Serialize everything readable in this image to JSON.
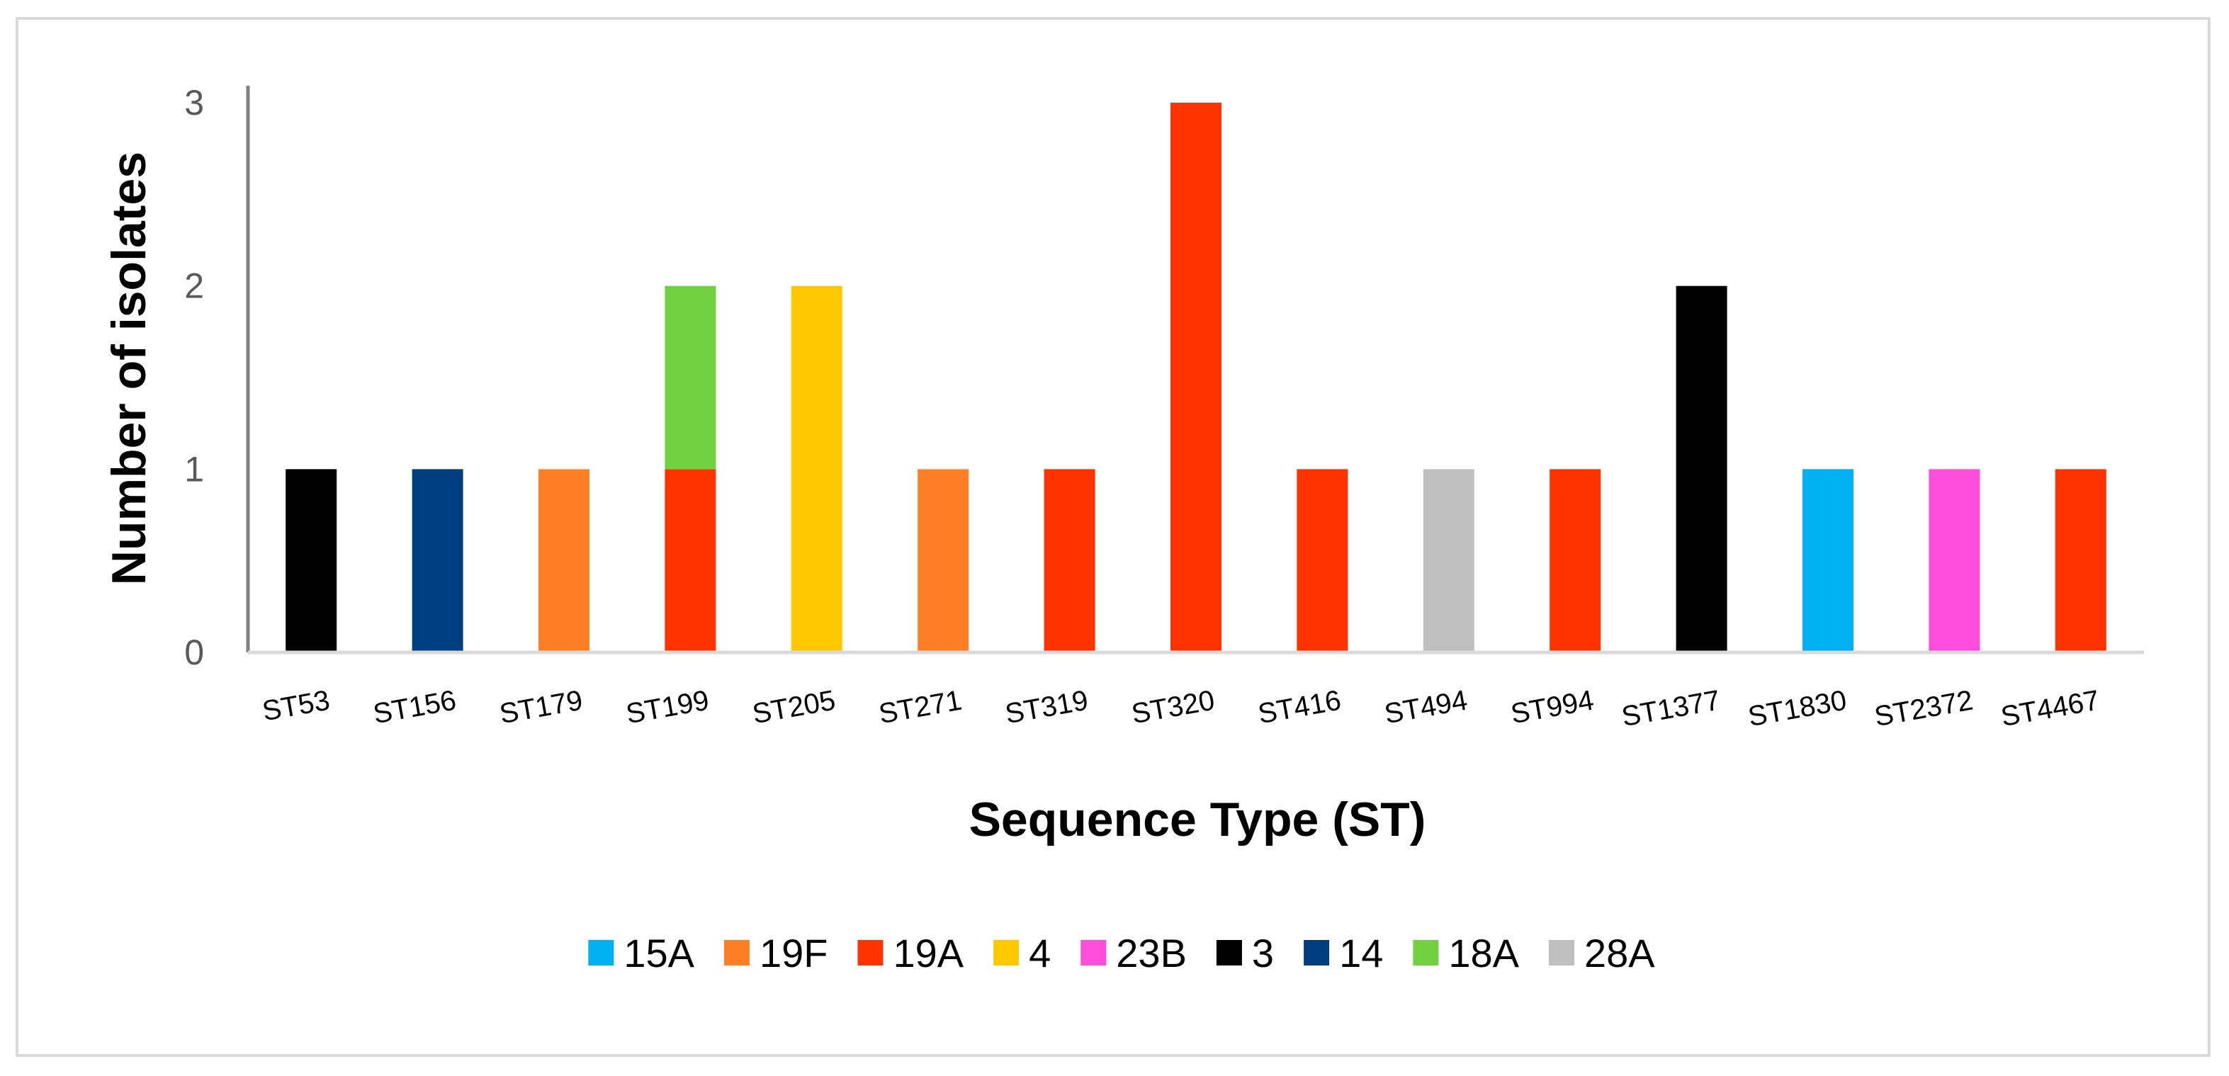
{
  "chart_data": {
    "type": "bar",
    "stacked": true,
    "title": "",
    "xlabel": "Sequence Type (ST)",
    "ylabel": "Number of isolates",
    "ylim": [
      0,
      3
    ],
    "yticks": [
      0,
      1,
      2,
      3
    ],
    "grid": false,
    "legend_position": "bottom",
    "categories": [
      "ST53",
      "ST156",
      "ST179",
      "ST199",
      "ST205",
      "ST271",
      "ST319",
      "ST320",
      "ST416",
      "ST494",
      "ST994",
      "ST1377",
      "ST1830",
      "ST2372",
      "ST4467"
    ],
    "series": [
      {
        "name": "15A",
        "color": "#00b0f0",
        "values": [
          0,
          0,
          0,
          0,
          0,
          0,
          0,
          0,
          0,
          0,
          0,
          0,
          1,
          0,
          0
        ]
      },
      {
        "name": "19F",
        "color": "#ff7f27",
        "values": [
          0,
          0,
          1,
          0,
          0,
          1,
          0,
          0,
          0,
          0,
          0,
          0,
          0,
          0,
          0
        ]
      },
      {
        "name": "19A",
        "color": "#ff3300",
        "values": [
          0,
          0,
          0,
          1,
          0,
          0,
          1,
          3,
          1,
          0,
          1,
          0,
          0,
          0,
          1
        ]
      },
      {
        "name": "4",
        "color": "#ffc800",
        "values": [
          0,
          0,
          0,
          0,
          2,
          0,
          0,
          0,
          0,
          0,
          0,
          0,
          0,
          0,
          0
        ]
      },
      {
        "name": "23B",
        "color": "#ff4ddb",
        "values": [
          0,
          0,
          0,
          0,
          0,
          0,
          0,
          0,
          0,
          0,
          0,
          0,
          0,
          1,
          0
        ]
      },
      {
        "name": "3",
        "color": "#000000",
        "values": [
          1,
          0,
          0,
          0,
          0,
          0,
          0,
          0,
          0,
          0,
          0,
          2,
          0,
          0,
          0
        ]
      },
      {
        "name": "14",
        "color": "#003f7f",
        "values": [
          0,
          1,
          0,
          0,
          0,
          0,
          0,
          0,
          0,
          0,
          0,
          0,
          0,
          0,
          0
        ]
      },
      {
        "name": "18A",
        "color": "#70d040",
        "values": [
          0,
          0,
          0,
          1,
          0,
          0,
          0,
          0,
          0,
          0,
          0,
          0,
          0,
          0,
          0
        ]
      },
      {
        "name": "28A",
        "color": "#bfbfbf",
        "values": [
          0,
          0,
          0,
          0,
          0,
          0,
          0,
          0,
          0,
          1,
          0,
          0,
          0,
          0,
          0
        ]
      }
    ]
  }
}
